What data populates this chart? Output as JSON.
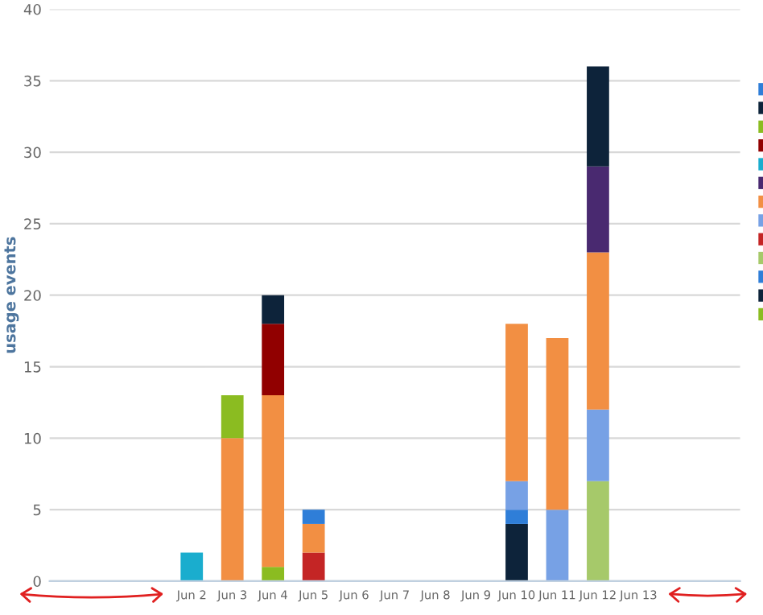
{
  "chart_data": {
    "type": "bar",
    "stacked": true,
    "ylabel": "usage events",
    "categories": [
      null,
      null,
      null,
      "Jun 2",
      "Jun 3",
      "Jun 4",
      "Jun 5",
      "Jun 6",
      "Jun 7",
      "Jun 8",
      "Jun 9",
      "Jun 10",
      "Jun 11",
      "Jun 12",
      "Jun 13",
      null,
      null
    ],
    "series": [
      {
        "color": "#8bbc21",
        "values": [
          null,
          null,
          null,
          null,
          null,
          1,
          null,
          null,
          null,
          null,
          null,
          null,
          null,
          null,
          null,
          null,
          null
        ]
      },
      {
        "color": "#0d233a",
        "values": [
          null,
          null,
          null,
          null,
          null,
          null,
          null,
          null,
          null,
          null,
          null,
          4,
          null,
          null,
          null,
          null,
          null
        ]
      },
      {
        "color": "#2f7ed8",
        "values": [
          null,
          null,
          null,
          null,
          null,
          null,
          null,
          null,
          null,
          null,
          null,
          1,
          null,
          null,
          null,
          null,
          null
        ]
      },
      {
        "color": "#a6c96a",
        "values": [
          null,
          null,
          null,
          null,
          null,
          null,
          null,
          null,
          null,
          null,
          null,
          null,
          null,
          7,
          null,
          null,
          null
        ]
      },
      {
        "color": "#c42525",
        "values": [
          null,
          null,
          null,
          null,
          null,
          null,
          2,
          null,
          null,
          null,
          null,
          null,
          null,
          null,
          null,
          null,
          null
        ]
      },
      {
        "color": "#77a1e5",
        "values": [
          null,
          null,
          null,
          null,
          null,
          null,
          null,
          null,
          null,
          null,
          null,
          2,
          5,
          5,
          null,
          null,
          null
        ]
      },
      {
        "color": "#f28f43",
        "values": [
          null,
          null,
          null,
          null,
          10,
          12,
          2,
          null,
          null,
          null,
          null,
          11,
          12,
          11,
          null,
          null,
          null
        ]
      },
      {
        "color": "#492970",
        "values": [
          null,
          null,
          null,
          null,
          null,
          null,
          null,
          null,
          null,
          null,
          null,
          null,
          null,
          6,
          null,
          null,
          null
        ]
      },
      {
        "color": "#1aadce",
        "values": [
          null,
          null,
          null,
          2,
          null,
          null,
          null,
          null,
          null,
          null,
          null,
          null,
          null,
          null,
          null,
          null,
          null
        ]
      },
      {
        "color": "#910000",
        "values": [
          null,
          null,
          null,
          null,
          null,
          5,
          null,
          null,
          null,
          null,
          null,
          null,
          null,
          null,
          null,
          null,
          null
        ]
      },
      {
        "color": "#8bbc21",
        "values": [
          null,
          null,
          null,
          null,
          3,
          null,
          null,
          null,
          null,
          null,
          null,
          null,
          null,
          null,
          null,
          null,
          null
        ]
      },
      {
        "color": "#0d233a",
        "values": [
          null,
          null,
          null,
          null,
          null,
          2,
          null,
          null,
          null,
          null,
          null,
          null,
          null,
          7,
          null,
          null,
          null
        ]
      },
      {
        "color": "#2f7ed8",
        "values": [
          null,
          null,
          null,
          null,
          null,
          null,
          1,
          null,
          null,
          null,
          null,
          null,
          null,
          null,
          null,
          null,
          null
        ]
      }
    ],
    "ylim": [
      0,
      40
    ],
    "yticks": [
      0,
      5,
      10,
      15,
      20,
      25,
      30,
      35,
      40
    ],
    "grid": "y"
  }
}
